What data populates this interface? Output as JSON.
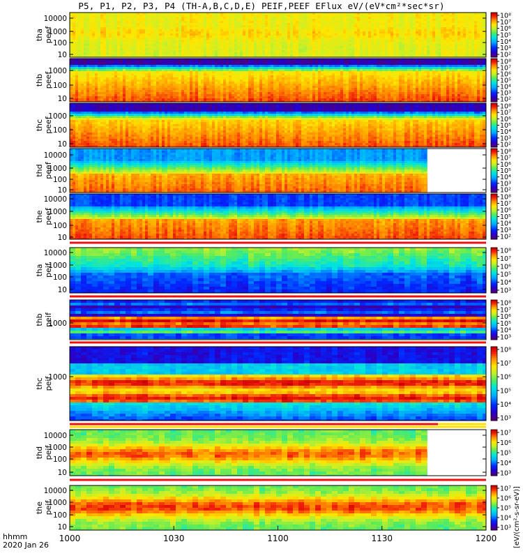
{
  "title": "P5, P1, P2, P3, P4 (TH-A,B,C,D,E) PEIF,PEEF EFlux eV/(eV*cm²*sec*sr)",
  "footer": {
    "line1": "hhmm",
    "line2": "2020 Jan 26"
  },
  "colorbar_unit_label": "[eV/(cm²-s-sr-eV)]",
  "chart_data": [
    {
      "type": "heatmap",
      "probe": "tha",
      "quantity": "peef",
      "ylabel": "tha peef",
      "ylog": true,
      "y_ticks": [
        "10000",
        "1000",
        "100",
        "10"
      ],
      "colorbar_ticks": [
        "10⁸",
        "10⁷",
        "10⁶",
        "10⁵",
        "10⁴",
        "10³",
        "10²"
      ],
      "profile": "tha_peef",
      "data_end": "1200"
    },
    {
      "type": "heatmap",
      "probe": "thb",
      "quantity": "peef",
      "ylabel": "thb peef",
      "ylog": true,
      "y_ticks": [
        "1000",
        "100",
        "10"
      ],
      "colorbar_ticks": [
        "10⁸",
        "10⁷",
        "10⁶",
        "10⁵",
        "10⁴",
        "10³",
        "10²"
      ],
      "profile": "thb_peef",
      "data_end": "1200"
    },
    {
      "type": "heatmap",
      "probe": "thc",
      "quantity": "peef",
      "ylabel": "thc peef",
      "ylog": true,
      "y_ticks": [
        "1000",
        "100",
        "10"
      ],
      "colorbar_ticks": [
        "10⁸",
        "10⁷",
        "10⁶",
        "10⁵",
        "10⁴",
        "10³",
        "10²"
      ],
      "profile": "thc_peef",
      "data_end": "1200"
    },
    {
      "type": "heatmap",
      "probe": "thd",
      "quantity": "peef",
      "ylabel": "thd peef",
      "ylog": true,
      "y_ticks": [
        "10000",
        "1000",
        "100",
        "10"
      ],
      "colorbar_ticks": [
        "10⁸",
        "10⁷",
        "10⁶",
        "10⁵",
        "10⁴",
        "10³",
        "10²"
      ],
      "profile": "thd_peef",
      "data_end": "1143"
    },
    {
      "type": "heatmap",
      "probe": "the",
      "quantity": "peef",
      "ylabel": "the peef",
      "ylog": true,
      "y_ticks": [
        "10000",
        "1000",
        "100",
        "10"
      ],
      "colorbar_ticks": [
        "10⁸",
        "10⁷",
        "10⁶",
        "10⁵",
        "10⁴",
        "10³",
        "10²"
      ],
      "profile": "the_peef",
      "data_end": "1200"
    },
    {
      "type": "heatmap",
      "probe": "tha",
      "quantity": "peif",
      "ylabel": "tha peif",
      "ylog": true,
      "y_ticks": [
        "10000",
        "1000",
        "100",
        "10"
      ],
      "colorbar_ticks": [
        "10⁸",
        "10⁷",
        "10⁶",
        "10⁵",
        "10⁴",
        "10³"
      ],
      "profile": "tha_peif",
      "data_end": "1200"
    },
    {
      "type": "heatmap",
      "probe": "thb",
      "quantity": "peif",
      "ylabel": "thb peif",
      "ylog": true,
      "y_ticks": [
        "1000"
      ],
      "colorbar_ticks": [
        "10⁸",
        "10⁷",
        "10⁶",
        "10⁵",
        "10⁴",
        "10³"
      ],
      "profile": "thb_peif",
      "data_end": "1200"
    },
    {
      "type": "heatmap",
      "probe": "thc",
      "quantity": "peif",
      "ylabel": "thc peif",
      "ylog": true,
      "y_ticks": [
        "1000"
      ],
      "colorbar_ticks": [
        "10⁸",
        "10⁷",
        "10⁶",
        "10⁵",
        "10⁴",
        "10³"
      ],
      "profile": "thc_peif",
      "data_end": "1200"
    },
    {
      "type": "heatmap",
      "probe": "thd",
      "quantity": "peif",
      "ylabel": "thd peif",
      "ylog": true,
      "y_ticks": [
        "10000",
        "1000",
        "100",
        "10"
      ],
      "colorbar_ticks": [
        "10⁷",
        "10⁶",
        "10⁵",
        "10⁴",
        "10³"
      ],
      "profile": "thd_peif",
      "data_end": "1143"
    },
    {
      "type": "heatmap",
      "probe": "the",
      "quantity": "peif",
      "ylabel": "the peif",
      "ylog": true,
      "y_ticks": [
        "10000",
        "1000",
        "100",
        "10"
      ],
      "colorbar_ticks": [
        "10⁷",
        "10⁶",
        "10⁵",
        "10⁴",
        "10³"
      ],
      "profile": "the_peif",
      "data_end": "1200"
    }
  ],
  "x_axis": {
    "ticks": [
      "1000",
      "1030",
      "1100",
      "1130",
      "1200"
    ]
  }
}
